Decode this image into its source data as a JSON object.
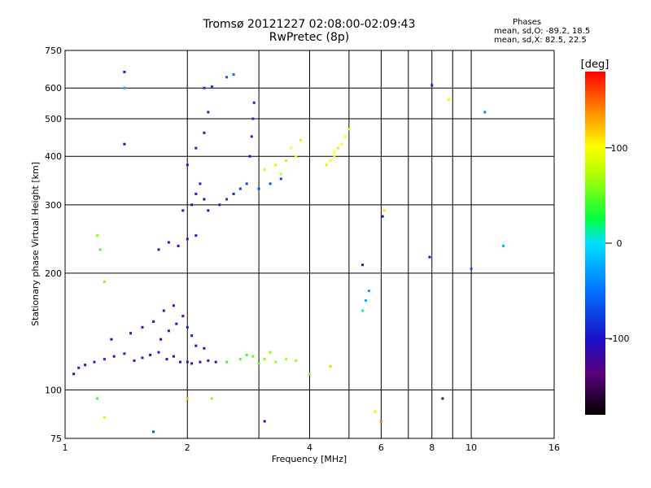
{
  "header": {
    "title_line1": "Tromsø 20121227 02:08:00-02:09:43",
    "title_line2": "RwPretec (8p)"
  },
  "stats": {
    "title": "Phases",
    "line1": "mean, sd,O: -89.2, 18.5",
    "line2": "mean, sd,X:  82.5, 22.5"
  },
  "colorbar": {
    "label": "[deg]",
    "range": [
      -180,
      180
    ],
    "ticks": [
      {
        "label": "100",
        "value": 100
      },
      {
        "label": "0",
        "value": 0
      },
      {
        "label": "-100",
        "value": -100
      }
    ]
  },
  "chart_data": {
    "type": "scatter",
    "xlabel": "Frequency [MHz]",
    "ylabel": "Stationary phase Virtual Height [km]",
    "xscale": "log",
    "yscale": "log",
    "xlim": [
      1,
      16
    ],
    "ylim": [
      75,
      750
    ],
    "xticks": [
      1,
      2,
      4,
      6,
      8,
      10,
      16
    ],
    "xticks_minor": [
      3,
      5,
      7,
      9
    ],
    "yticks": [
      75,
      100,
      200,
      300,
      400,
      500,
      600,
      750
    ],
    "grid": true,
    "points": [
      [
        1.05,
        110,
        -95
      ],
      [
        1.08,
        114,
        -90
      ],
      [
        1.12,
        116,
        -98
      ],
      [
        1.18,
        118,
        -92
      ],
      [
        1.25,
        120,
        -85
      ],
      [
        1.32,
        122,
        -97
      ],
      [
        1.4,
        124,
        -90
      ],
      [
        1.48,
        119,
        -95
      ],
      [
        1.55,
        121,
        -88
      ],
      [
        1.62,
        123,
        -99
      ],
      [
        1.7,
        125,
        -92
      ],
      [
        1.78,
        120,
        -100
      ],
      [
        1.85,
        122,
        -94
      ],
      [
        1.92,
        118,
        -96
      ],
      [
        2.0,
        118,
        -98
      ],
      [
        2.05,
        117,
        -95
      ],
      [
        2.15,
        118,
        -90
      ],
      [
        2.25,
        119,
        -93
      ],
      [
        2.35,
        118,
        -96
      ],
      [
        1.3,
        135,
        -95
      ],
      [
        1.45,
        140,
        -90
      ],
      [
        1.55,
        145,
        -98
      ],
      [
        1.65,
        150,
        -92
      ],
      [
        1.72,
        135,
        -100
      ],
      [
        1.8,
        142,
        -88
      ],
      [
        1.88,
        148,
        -97
      ],
      [
        1.95,
        155,
        -93
      ],
      [
        2.0,
        145,
        -95
      ],
      [
        2.05,
        138,
        -90
      ],
      [
        2.1,
        130,
        -95
      ],
      [
        2.2,
        128,
        -100
      ],
      [
        1.75,
        160,
        -95
      ],
      [
        1.85,
        165,
        -92
      ],
      [
        2.5,
        118,
        40
      ],
      [
        2.7,
        120,
        45
      ],
      [
        2.9,
        122,
        55
      ],
      [
        3.1,
        120,
        60
      ],
      [
        3.3,
        118,
        65
      ],
      [
        3.5,
        120,
        70
      ],
      [
        3.7,
        119,
        60
      ],
      [
        3.2,
        125,
        58
      ],
      [
        3.0,
        117,
        50
      ],
      [
        2.8,
        123,
        42
      ],
      [
        1.7,
        230,
        -95
      ],
      [
        1.8,
        240,
        -92
      ],
      [
        1.9,
        235,
        -98
      ],
      [
        2.0,
        245,
        -90
      ],
      [
        2.1,
        250,
        -94
      ],
      [
        1.95,
        290,
        -95
      ],
      [
        2.05,
        300,
        -92
      ],
      [
        2.1,
        320,
        -96
      ],
      [
        2.15,
        340,
        -90
      ],
      [
        2.2,
        310,
        -100
      ],
      [
        2.25,
        290,
        -94
      ],
      [
        2.4,
        300,
        -90
      ],
      [
        2.5,
        310,
        -85
      ],
      [
        2.6,
        320,
        -88
      ],
      [
        2.7,
        330,
        -80
      ],
      [
        2.8,
        340,
        -75
      ],
      [
        3.0,
        330,
        -70
      ],
      [
        3.2,
        340,
        -72
      ],
      [
        3.4,
        350,
        -75
      ],
      [
        2.0,
        380,
        -95
      ],
      [
        2.1,
        420,
        -92
      ],
      [
        2.2,
        460,
        -97
      ],
      [
        2.25,
        520,
        -90
      ],
      [
        2.2,
        600,
        -80
      ],
      [
        2.3,
        605,
        -70
      ],
      [
        2.5,
        640,
        -60
      ],
      [
        2.6,
        650,
        -55
      ],
      [
        2.85,
        400,
        -95
      ],
      [
        2.88,
        450,
        -90
      ],
      [
        2.9,
        500,
        -85
      ],
      [
        2.92,
        550,
        -88
      ],
      [
        3.1,
        370,
        80
      ],
      [
        3.3,
        380,
        85
      ],
      [
        3.5,
        390,
        70
      ],
      [
        3.7,
        400,
        90
      ],
      [
        3.6,
        420,
        100
      ],
      [
        3.4,
        360,
        75
      ],
      [
        3.8,
        440,
        80
      ],
      [
        4.4,
        380,
        85
      ],
      [
        4.5,
        390,
        95
      ],
      [
        4.6,
        400,
        90
      ],
      [
        4.7,
        420,
        80
      ],
      [
        4.8,
        430,
        100
      ],
      [
        4.9,
        450,
        95
      ],
      [
        5.0,
        470,
        85
      ],
      [
        4.6,
        410,
        100
      ],
      [
        4.0,
        110,
        60
      ],
      [
        4.5,
        115,
        65
      ],
      [
        5.5,
        170,
        -20
      ],
      [
        5.6,
        180,
        -30
      ],
      [
        5.4,
        160,
        10
      ],
      [
        1.4,
        660,
        -95
      ],
      [
        1.4,
        600,
        -20
      ],
      [
        1.4,
        430,
        -100
      ],
      [
        8.0,
        610,
        -95
      ],
      [
        8.5,
        95,
        -140
      ],
      [
        8.8,
        560,
        90
      ],
      [
        10.8,
        520,
        -40
      ],
      [
        10.0,
        205,
        -60
      ],
      [
        12.0,
        235,
        -20
      ],
      [
        7.9,
        220,
        -100
      ],
      [
        1.2,
        250,
        60
      ],
      [
        1.22,
        230,
        40
      ],
      [
        1.25,
        190,
        60
      ],
      [
        1.2,
        95,
        40
      ],
      [
        1.25,
        85,
        80
      ],
      [
        1.65,
        78,
        -60
      ],
      [
        2.0,
        95,
        120
      ],
      [
        2.3,
        95,
        60
      ],
      [
        3.1,
        83,
        -100
      ],
      [
        5.8,
        88,
        80
      ],
      [
        6.0,
        83,
        140
      ],
      [
        6.1,
        290,
        110
      ],
      [
        6.05,
        280,
        -100
      ],
      [
        5.4,
        210,
        -130
      ]
    ]
  }
}
